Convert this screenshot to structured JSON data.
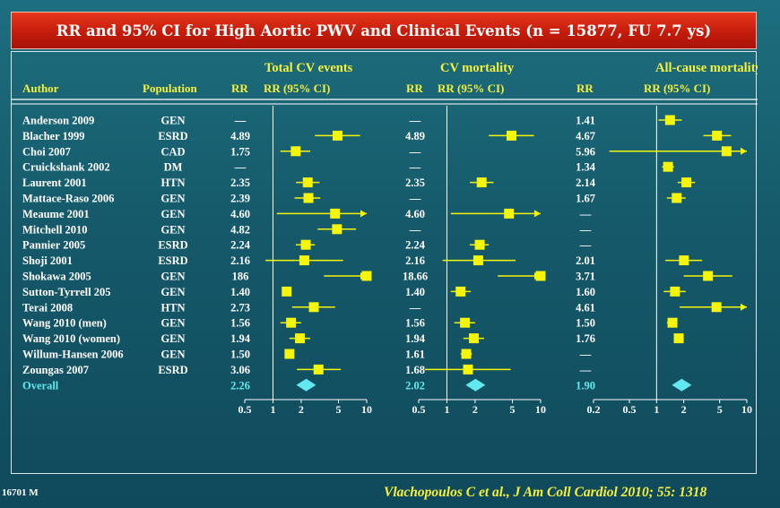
{
  "title": "RR and 95% CI for High Aortic PWV and Clinical Events (n = 15877, FU 7.7 ys)",
  "footer": {
    "left": "16701 M",
    "citation": "Vlachopoulos C et al., J Am Coll Cardiol 2010; 55: 1318"
  },
  "headers": {
    "author": "Author",
    "population": "Population",
    "rr": "RR",
    "rr_ci": "RR (95% CI)"
  },
  "colors": {
    "marker": "#f5f50a",
    "overall": "#62e8f0",
    "text": "#ffffff",
    "group": "#f5f03c"
  },
  "chart_data": {
    "type": "forest",
    "x_scale": "log",
    "groups": [
      {
        "name": "Total CV events",
        "ticks": [
          "0.5",
          "1",
          "2",
          "5",
          "10"
        ],
        "xlim": [
          0.5,
          10
        ]
      },
      {
        "name": "CV mortality",
        "ticks": [
          "0.5",
          "1",
          "2",
          "5",
          "10"
        ],
        "xlim": [
          0.5,
          10
        ]
      },
      {
        "name": "All-cause mortality",
        "ticks": [
          "0.2",
          "0.5",
          "1",
          "2",
          "5",
          "10"
        ],
        "xlim": [
          0.2,
          10
        ]
      }
    ],
    "studies": [
      {
        "author": "Anderson 2009",
        "population": "GEN",
        "rr": [
          "—",
          "—",
          "1.41"
        ],
        "est": [
          null,
          null,
          {
            "rr": 1.41,
            "lo": 1.05,
            "hi": 1.9
          }
        ]
      },
      {
        "author": "Blacher 1999",
        "population": "ESRD",
        "rr": [
          "4.89",
          "4.89",
          "4.67"
        ],
        "est": [
          {
            "rr": 4.89,
            "lo": 2.8,
            "hi": 8.5
          },
          {
            "rr": 4.89,
            "lo": 2.8,
            "hi": 8.5
          },
          {
            "rr": 4.67,
            "lo": 3.3,
            "hi": 6.7
          }
        ]
      },
      {
        "author": "Choi 2007",
        "population": "CAD",
        "rr": [
          "1.75",
          "—",
          "5.96"
        ],
        "est": [
          {
            "rr": 1.75,
            "lo": 1.2,
            "hi": 2.5
          },
          null,
          {
            "rr": 5.96,
            "lo": 0.3,
            "hi": 12
          }
        ]
      },
      {
        "author": "Cruickshank 2002",
        "population": "DM",
        "rr": [
          "—",
          "—",
          "1.34"
        ],
        "est": [
          null,
          null,
          {
            "rr": 1.34,
            "lo": 1.15,
            "hi": 1.56
          }
        ]
      },
      {
        "author": "Laurent 2001",
        "population": "HTN",
        "rr": [
          "2.35",
          "2.35",
          "2.14"
        ],
        "est": [
          {
            "rr": 2.35,
            "lo": 1.76,
            "hi": 3.14
          },
          {
            "rr": 2.35,
            "lo": 1.76,
            "hi": 3.14
          },
          {
            "rr": 2.14,
            "lo": 1.71,
            "hi": 2.67
          }
        ]
      },
      {
        "author": "Mattace-Raso 2006",
        "population": "GEN",
        "rr": [
          "2.39",
          "—",
          "1.67"
        ],
        "est": [
          {
            "rr": 2.39,
            "lo": 1.7,
            "hi": 3.2
          },
          null,
          {
            "rr": 1.67,
            "lo": 1.3,
            "hi": 2.1
          }
        ]
      },
      {
        "author": "Meaume 2001",
        "population": "GEN",
        "rr": [
          "4.60",
          "4.60",
          "—"
        ],
        "est": [
          {
            "rr": 4.6,
            "lo": 1.1,
            "hi": 12
          },
          {
            "rr": 4.6,
            "lo": 1.1,
            "hi": 12
          },
          null
        ]
      },
      {
        "author": "Mitchell 2010",
        "population": "GEN",
        "rr": [
          "4.82",
          "—",
          "—"
        ],
        "est": [
          {
            "rr": 4.82,
            "lo": 3.0,
            "hi": 7.7
          },
          null,
          null
        ]
      },
      {
        "author": "Pannier 2005",
        "population": "ESRD",
        "rr": [
          "2.24",
          "2.24",
          "—"
        ],
        "est": [
          {
            "rr": 2.24,
            "lo": 1.75,
            "hi": 2.8
          },
          {
            "rr": 2.24,
            "lo": 1.75,
            "hi": 2.8
          },
          null
        ]
      },
      {
        "author": "Shoji 2001",
        "population": "ESRD",
        "rr": [
          "2.16",
          "2.16",
          "2.01"
        ],
        "est": [
          {
            "rr": 2.16,
            "lo": 0.83,
            "hi": 5.6
          },
          {
            "rr": 2.16,
            "lo": 0.9,
            "hi": 5.4
          },
          {
            "rr": 2.01,
            "lo": 1.25,
            "hi": 3.2
          }
        ]
      },
      {
        "author": "Shokawa 2005",
        "population": "GEN",
        "rr": [
          "186",
          "18.66",
          "3.71"
        ],
        "est": [
          {
            "rr": 186,
            "lo": 3.5,
            "hi": 186
          },
          {
            "rr": 18.66,
            "lo": 3.5,
            "hi": 18.66
          },
          {
            "rr": 3.71,
            "lo": 2.0,
            "hi": 6.9
          }
        ]
      },
      {
        "author": "Sutton-Tyrrell 205",
        "population": "GEN",
        "rr": [
          "1.40",
          "1.40",
          "1.60"
        ],
        "est": [
          {
            "rr": 1.4,
            "lo": 1.3,
            "hi": 1.5
          },
          {
            "rr": 1.4,
            "lo": 1.1,
            "hi": 1.8
          },
          {
            "rr": 1.6,
            "lo": 1.2,
            "hi": 2.1
          }
        ]
      },
      {
        "author": "Terai 2008",
        "population": "HTN",
        "rr": [
          "2.73",
          "—",
          "4.61"
        ],
        "est": [
          {
            "rr": 2.73,
            "lo": 1.6,
            "hi": 4.6
          },
          null,
          {
            "rr": 4.61,
            "lo": 1.8,
            "hi": 12
          }
        ]
      },
      {
        "author": "Wang 2010 (men)",
        "population": "GEN",
        "rr": [
          "1.56",
          "1.56",
          "1.50"
        ],
        "est": [
          {
            "rr": 1.56,
            "lo": 1.2,
            "hi": 2.0
          },
          {
            "rr": 1.56,
            "lo": 1.2,
            "hi": 2.0
          },
          {
            "rr": 1.5,
            "lo": 1.3,
            "hi": 1.7
          }
        ]
      },
      {
        "author": "Wang 2010 (women)",
        "population": "GEN",
        "rr": [
          "1.94",
          "1.94",
          "1.76"
        ],
        "est": [
          {
            "rr": 1.94,
            "lo": 1.5,
            "hi": 2.5
          },
          {
            "rr": 1.94,
            "lo": 1.5,
            "hi": 2.5
          },
          {
            "rr": 1.76,
            "lo": 1.55,
            "hi": 2.0
          }
        ]
      },
      {
        "author": "Willum-Hansen 2006",
        "population": "GEN",
        "rr": [
          "1.50",
          "1.61",
          "—"
        ],
        "est": [
          {
            "rr": 1.5,
            "lo": 1.35,
            "hi": 1.65
          },
          {
            "rr": 1.61,
            "lo": 1.4,
            "hi": 1.85
          },
          null
        ]
      },
      {
        "author": "Zoungas 2007",
        "population": "ESRD",
        "rr": [
          "3.06",
          "1.68",
          "—"
        ],
        "est": [
          {
            "rr": 3.06,
            "lo": 1.8,
            "hi": 5.3
          },
          {
            "rr": 1.68,
            "lo": 0.58,
            "hi": 4.8
          },
          null
        ]
      }
    ],
    "overall": {
      "label": "Overall",
      "rr": [
        "2.26",
        "2.02",
        "1.90"
      ],
      "est": [
        {
          "rr": 2.26,
          "lo": 1.89,
          "hi": 2.7
        },
        {
          "rr": 2.02,
          "lo": 1.68,
          "hi": 2.42
        },
        {
          "rr": 1.9,
          "lo": 1.61,
          "hi": 2.24
        }
      ]
    }
  }
}
